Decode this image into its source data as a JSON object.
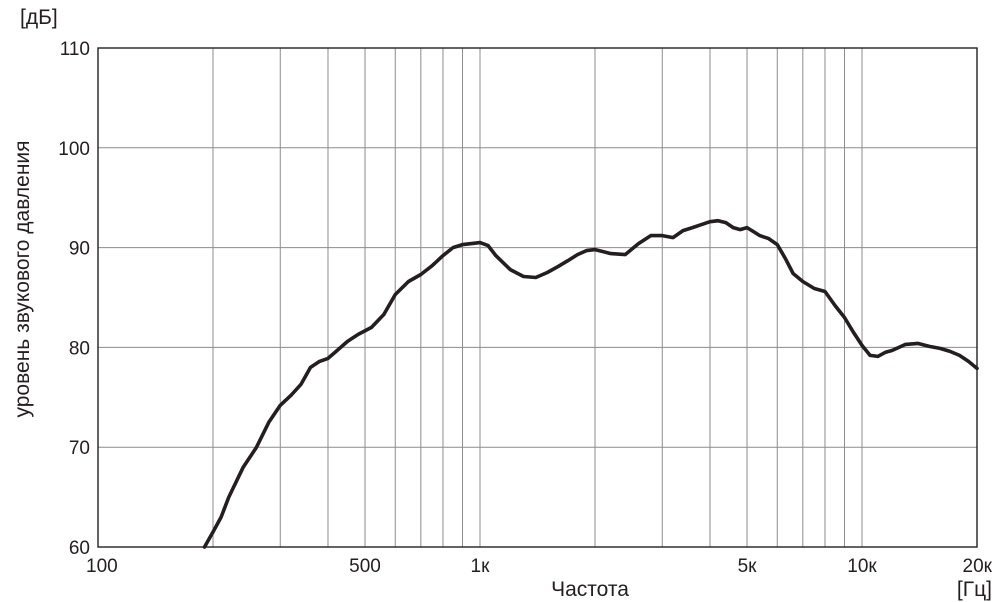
{
  "chart_data": {
    "type": "line",
    "title": "",
    "xlabel": "Частота",
    "ylabel": "уровень звукового давления",
    "y_unit": "[дБ]",
    "x_unit": "[Гц]",
    "x_scale": "log",
    "xlim": [
      100,
      20000
    ],
    "ylim": [
      60,
      110
    ],
    "grid": true,
    "line_color": "#231f20",
    "grid_color": "#8c8c8c",
    "x_ticks": [
      {
        "value": 100,
        "label": "100"
      },
      {
        "value": 500,
        "label": "500"
      },
      {
        "value": 1000,
        "label": "1к"
      },
      {
        "value": 5000,
        "label": "5к"
      },
      {
        "value": 10000,
        "label": "10к"
      },
      {
        "value": 20000,
        "label": "20к"
      }
    ],
    "x_gridlines": [
      200,
      300,
      400,
      500,
      600,
      700,
      800,
      900,
      1000,
      2000,
      3000,
      4000,
      5000,
      6000,
      7000,
      8000,
      9000,
      10000
    ],
    "y_ticks": [
      {
        "value": 60,
        "label": "60"
      },
      {
        "value": 70,
        "label": "70"
      },
      {
        "value": 80,
        "label": "80"
      },
      {
        "value": 90,
        "label": "90"
      },
      {
        "value": 100,
        "label": "100"
      },
      {
        "value": 110,
        "label": "110"
      }
    ],
    "series": [
      {
        "x": [
          190,
          200,
          210,
          220,
          240,
          260,
          280,
          300,
          320,
          340,
          360,
          380,
          400,
          420,
          450,
          480,
          520,
          560,
          600,
          650,
          700,
          750,
          800,
          850,
          900,
          950,
          1000,
          1050,
          1100,
          1200,
          1300,
          1400,
          1500,
          1600,
          1700,
          1800,
          1900,
          2000,
          2100,
          2200,
          2400,
          2600,
          2800,
          3000,
          3200,
          3400,
          3600,
          3800,
          4000,
          4200,
          4400,
          4600,
          4800,
          5000,
          5200,
          5400,
          5700,
          6000,
          6300,
          6600,
          7000,
          7500,
          8000,
          8500,
          9000,
          9500,
          10000,
          10500,
          11000,
          11500,
          12000,
          13000,
          14000,
          15000,
          16000,
          17000,
          18000,
          19000,
          20000
        ],
        "y": [
          60.0,
          61.5,
          63.0,
          65.0,
          68.0,
          70.0,
          72.5,
          74.2,
          75.2,
          76.3,
          78.0,
          78.6,
          78.9,
          79.6,
          80.6,
          81.3,
          82.0,
          83.3,
          85.3,
          86.6,
          87.3,
          88.2,
          89.2,
          90.0,
          90.3,
          90.4,
          90.5,
          90.2,
          89.2,
          87.8,
          87.1,
          87.0,
          87.5,
          88.1,
          88.7,
          89.3,
          89.7,
          89.8,
          89.6,
          89.4,
          89.3,
          90.4,
          91.2,
          91.2,
          91.0,
          91.7,
          92.0,
          92.3,
          92.6,
          92.7,
          92.5,
          92.0,
          91.8,
          92.0,
          91.6,
          91.2,
          90.9,
          90.3,
          88.9,
          87.4,
          86.6,
          85.9,
          85.6,
          84.2,
          83.0,
          81.5,
          80.2,
          79.2,
          79.1,
          79.5,
          79.7,
          80.3,
          80.4,
          80.1,
          79.9,
          79.6,
          79.2,
          78.6,
          77.9
        ]
      }
    ]
  }
}
